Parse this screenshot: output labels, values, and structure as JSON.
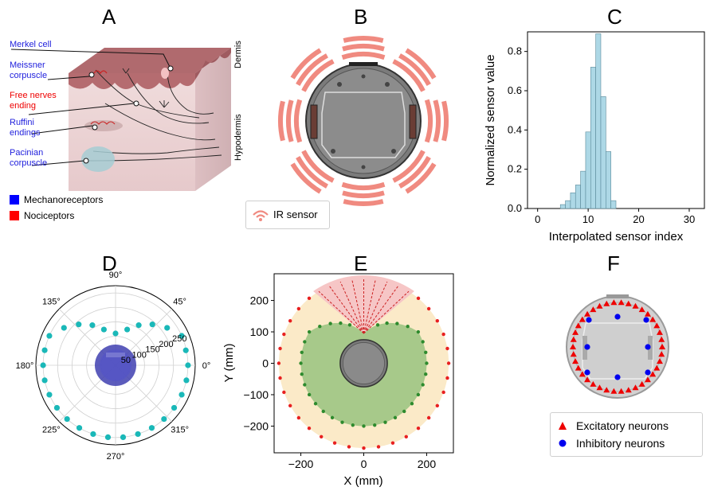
{
  "panels": {
    "A": "A",
    "B": "B",
    "C": "C",
    "D": "D",
    "E": "E",
    "F": "F"
  },
  "panel_a": {
    "labels": {
      "merkel": "Merkel cell",
      "meissner_1": "Meissner",
      "meissner_2": "corpuscle",
      "free_1": "Free nerves",
      "free_2": "ending",
      "ruffini_1": "Ruffini",
      "ruffini_2": "endings",
      "pacinian_1": "Pacinian",
      "pacinian_2": "corpuscle",
      "dermis": "Dermis",
      "hypodermis": "Hypodermis"
    },
    "legend": [
      {
        "label": "Mechanoreceptors",
        "color": "#0000ff"
      },
      {
        "label": "Nociceptors",
        "color": "#ff0000"
      }
    ],
    "colors": {
      "mechano_text": "#2222dd",
      "noci_text": "#ee0000",
      "skin_top": "#b56c70",
      "tissue": "#ecd4d4"
    }
  },
  "panel_b": {
    "legend_label": "IR sensor",
    "sensor_color": "#f08a80",
    "sensor_angles_deg": [
      0,
      45,
      90,
      135,
      180,
      225,
      270,
      315
    ]
  },
  "panel_c": {
    "chart_data": {
      "type": "bar",
      "xlabel": "Interpolated sensor index",
      "ylabel": "Normalized sensor value",
      "x_ticks": [
        "0",
        "10",
        "20",
        "30"
      ],
      "y_ticks": [
        "0.0",
        "0.2",
        "0.4",
        "0.6",
        "0.8"
      ],
      "xlim": [
        -2,
        33
      ],
      "ylim": [
        0,
        0.9
      ],
      "bar_color": "#add8e6",
      "bins": [
        {
          "x": 5,
          "y": 0.02
        },
        {
          "x": 6,
          "y": 0.04
        },
        {
          "x": 7,
          "y": 0.08
        },
        {
          "x": 8,
          "y": 0.12
        },
        {
          "x": 9,
          "y": 0.19
        },
        {
          "x": 10,
          "y": 0.39
        },
        {
          "x": 11,
          "y": 0.72
        },
        {
          "x": 12,
          "y": 0.89
        },
        {
          "x": 13,
          "y": 0.57
        },
        {
          "x": 14,
          "y": 0.29
        },
        {
          "x": 15,
          "y": 0.04
        }
      ]
    }
  },
  "panel_d": {
    "chart_data": {
      "type": "scatter",
      "projection": "polar",
      "angle_labels": [
        "0°",
        "45°",
        "90°",
        "135°",
        "180°",
        "225°",
        "270°",
        "315°"
      ],
      "radial_labels": [
        "50",
        "100",
        "150",
        "200",
        "250"
      ],
      "rmax": 275,
      "point_color": "#1ab8b8",
      "points": [
        {
          "theta": 0,
          "r": 250
        },
        {
          "theta": 12,
          "r": 248
        },
        {
          "theta": 24,
          "r": 250
        },
        {
          "theta": 36,
          "r": 220
        },
        {
          "theta": 48,
          "r": 190
        },
        {
          "theta": 60,
          "r": 160
        },
        {
          "theta": 72,
          "r": 130
        },
        {
          "theta": 90,
          "r": 110
        },
        {
          "theta": 108,
          "r": 130
        },
        {
          "theta": 120,
          "r": 160
        },
        {
          "theta": 132,
          "r": 190
        },
        {
          "theta": 144,
          "r": 220
        },
        {
          "theta": 156,
          "r": 250
        },
        {
          "theta": 168,
          "r": 250
        },
        {
          "theta": 180,
          "r": 250
        },
        {
          "theta": 192,
          "r": 250
        },
        {
          "theta": 204,
          "r": 250
        },
        {
          "theta": 216,
          "r": 250
        },
        {
          "theta": 228,
          "r": 250
        },
        {
          "theta": 240,
          "r": 250
        },
        {
          "theta": 252,
          "r": 250
        },
        {
          "theta": 264,
          "r": 250
        },
        {
          "theta": 276,
          "r": 250
        },
        {
          "theta": 288,
          "r": 250
        },
        {
          "theta": 300,
          "r": 250
        },
        {
          "theta": 312,
          "r": 250
        },
        {
          "theta": 324,
          "r": 250
        },
        {
          "theta": 336,
          "r": 250
        },
        {
          "theta": 348,
          "r": 250
        }
      ]
    }
  },
  "panel_e": {
    "chart_data": {
      "type": "scatter",
      "xlabel": "X (mm)",
      "ylabel": "Y (mm)",
      "x_ticks": [
        "−200",
        "0",
        "200"
      ],
      "y_ticks": [
        "200",
        "100",
        "0",
        "−100",
        "−200"
      ],
      "xlim": [
        -285,
        285
      ],
      "ylim": [
        -285,
        285
      ],
      "colors": {
        "outer_fill": "#fbeac8",
        "outer_pts": "#e82020",
        "inner_fill": "#a7c98a",
        "inner_pts": "#2e8b2e",
        "cone_fill": "#f6c6c6"
      },
      "outer_radius": 270,
      "inner_radius": 200,
      "gap_half_angle_deg": 30
    }
  },
  "panel_f": {
    "legend": [
      {
        "label": "Excitatory neurons",
        "color": "#ee0000",
        "marker": "triangle"
      },
      {
        "label": "Inhibitory neurons",
        "color": "#0000ee",
        "marker": "circle"
      }
    ]
  }
}
